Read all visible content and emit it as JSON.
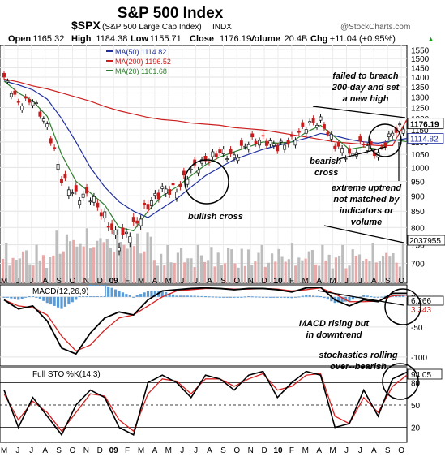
{
  "header": {
    "title": "S&P 500 Index",
    "symbol": "$SPX",
    "symbol_desc": "(S&P 500 Large Cap Index)",
    "exchange": "INDX",
    "watermark": "@StockCharts.com",
    "quote": [
      {
        "label": "Open",
        "value": "1165.32"
      },
      {
        "label": "High",
        "value": "1184.38"
      },
      {
        "label": "Low",
        "value": "1155.71"
      },
      {
        "label": "Close",
        "value": "1176.19"
      },
      {
        "label": "Volume",
        "value": "20.4B"
      },
      {
        "label": "Chg",
        "value": "+11.04 (+0.95%)"
      }
    ],
    "quote_arrow": "▲"
  },
  "legend": [
    {
      "label": "MA(50) 1114.82",
      "color": "#1f2fa0"
    },
    {
      "label": "MA(200) 1196.52",
      "color": "#cc2020"
    },
    {
      "label": "MA(20) 1101.68",
      "color": "#2e7d2e"
    }
  ],
  "annotations": {
    "failed": [
      "failed to breach",
      "200-day and set",
      "a new high"
    ],
    "bearish": [
      "bearish",
      "cross"
    ],
    "extreme": [
      "extreme uptrend",
      "not matched by",
      "indicators or",
      "volume"
    ],
    "bullish": [
      "bullish cross"
    ],
    "macd_note": [
      "MACD rising but",
      "in downtrend"
    ],
    "sto_note": [
      "stochastics rolling",
      "over--bearish"
    ]
  },
  "macd_panel": {
    "title": "MACD(12,26,9)",
    "value_top": "6.266",
    "value_bot": "3.343"
  },
  "sto_panel": {
    "title": "Full STO %K(14,3)",
    "value": "94.05"
  },
  "chart_data": {
    "type": "line",
    "price": {
      "y_ticks": [
        "1550",
        "1500",
        "1450",
        "1400",
        "1350",
        "1300",
        "1250",
        "1200",
        "1150",
        "1100",
        "1050",
        "1000",
        "950",
        "900",
        "850",
        "800",
        "750",
        "700"
      ],
      "last_close": "1176.19",
      "ma50_label": "1114.82",
      "volume_label": "2037955",
      "ylim": [
        650,
        1575
      ],
      "y_scale": "log",
      "months": [
        "Jun 2008",
        "Jul 2008",
        "Aug 2008",
        "Sep 2008",
        "Oct 2008",
        "Nov 2008",
        "Dec 2008",
        "Jan 2009",
        "Feb 2009",
        "Mar 2009",
        "Apr 2009",
        "May 2009",
        "Jun 2009",
        "Jul 2009",
        "Aug 2009",
        "Sep 2009",
        "Oct 2009",
        "Nov 2009",
        "Dec 2009",
        "Jan 2010",
        "Feb 2010",
        "Mar 2010",
        "Apr 2010",
        "May 2010",
        "Jun 2010",
        "Jul 2010",
        "Aug 2010",
        "Sep 2010",
        "Oct 2010"
      ],
      "close": [
        1400,
        1270,
        1285,
        1165,
        960,
        900,
        900,
        830,
        760,
        800,
        870,
        920,
        920,
        990,
        1025,
        1060,
        1040,
        1100,
        1110,
        1080,
        1105,
        1170,
        1190,
        1090,
        1040,
        1100,
        1050,
        1140,
        1176
      ],
      "ma200": [
        1390,
        1375,
        1355,
        1340,
        1320,
        1300,
        1280,
        1255,
        1235,
        1220,
        1205,
        1195,
        1190,
        1180,
        1175,
        1170,
        1160,
        1155,
        1150,
        1140,
        1130,
        1120,
        1110,
        1100,
        1095,
        1090,
        1085,
        1085,
        1196
      ],
      "ma50": [
        1380,
        1360,
        1335,
        1290,
        1200,
        1100,
        1000,
        930,
        880,
        850,
        830,
        860,
        890,
        930,
        970,
        1000,
        1030,
        1050,
        1070,
        1085,
        1100,
        1115,
        1135,
        1125,
        1110,
        1100,
        1095,
        1105,
        1114
      ],
      "ma20": [
        1380,
        1320,
        1280,
        1210,
        1050,
        950,
        910,
        870,
        800,
        790,
        850,
        900,
        930,
        970,
        1010,
        1040,
        1060,
        1080,
        1100,
        1095,
        1100,
        1140,
        1170,
        1120,
        1070,
        1080,
        1070,
        1110,
        1101
      ]
    },
    "macd": {
      "y_ticks": [
        "0",
        "-50",
        "-100"
      ],
      "ylim": [
        -115,
        20
      ],
      "macd": [
        -5,
        -20,
        -15,
        -40,
        -85,
        -95,
        -60,
        -35,
        -25,
        -30,
        -5,
        10,
        12,
        14,
        15,
        14,
        12,
        14,
        14,
        12,
        8,
        15,
        16,
        -5,
        -15,
        -5,
        -8,
        6,
        6
      ],
      "signal": [
        -5,
        -15,
        -18,
        -30,
        -65,
        -90,
        -80,
        -55,
        -35,
        -30,
        -15,
        0,
        10,
        12,
        14,
        14,
        13,
        13,
        14,
        13,
        10,
        12,
        15,
        5,
        -8,
        -8,
        -7,
        2,
        3
      ]
    },
    "stochastics": {
      "y_ticks": [
        "80",
        "50",
        "20"
      ],
      "ylim": [
        0,
        100
      ],
      "k": [
        70,
        20,
        60,
        35,
        10,
        50,
        70,
        60,
        20,
        10,
        80,
        90,
        80,
        60,
        90,
        85,
        70,
        90,
        95,
        60,
        80,
        95,
        90,
        20,
        25,
        70,
        35,
        85,
        94
      ],
      "d": [
        65,
        30,
        55,
        40,
        15,
        40,
        65,
        62,
        30,
        15,
        65,
        85,
        82,
        65,
        85,
        85,
        75,
        85,
        92,
        70,
        75,
        90,
        92,
        35,
        25,
        60,
        40,
        75,
        90
      ]
    },
    "x_labels": [
      "M",
      "J",
      "J",
      "A",
      "S",
      "O",
      "N",
      "D",
      "09",
      "F",
      "M",
      "A",
      "M",
      "J",
      "J",
      "A",
      "S",
      "O",
      "N",
      "D",
      "10",
      "F",
      "M",
      "A",
      "M",
      "J",
      "J",
      "A",
      "S",
      "O"
    ]
  }
}
